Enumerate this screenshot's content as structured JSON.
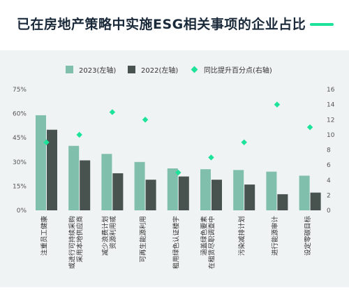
{
  "title": "已在房地产策略中实施ESG相关事项的企业占比",
  "colors": {
    "series_2023": "#7fbfab",
    "series_2022": "#48524f",
    "yoy_marker": "#1de39a",
    "accent": "#1de39a",
    "axis_text": "#555555",
    "grid": "#d4dcdc"
  },
  "legend": {
    "s2023": "2023(左轴)",
    "s2022": "2022(左轴)",
    "yoy": "同比提升百分点(右轴)"
  },
  "chart_data": {
    "type": "bar",
    "title": "已在房地产策略中实施ESG相关事项的企业占比",
    "categories": [
      [
        "注重员工健康"
      ],
      [
        "采用本地供应商",
        "或进行可持续采购"
      ],
      [
        "资源利用或",
        "减少浪费计划"
      ],
      [
        "可再生能源利用"
      ],
      [
        "租用绿色认证楼宇"
      ],
      [
        "在租赁尽职调查中",
        "涵盖绿色要素"
      ],
      [
        "污染减排计划"
      ],
      [
        "进行能源审计"
      ],
      [
        "设定零碳目标"
      ]
    ],
    "series": [
      {
        "name": "2023(左轴)",
        "axis": "left",
        "values": [
          59,
          40,
          35,
          30,
          26,
          25.5,
          25,
          24,
          21.5
        ]
      },
      {
        "name": "2022(左轴)",
        "axis": "left",
        "values": [
          50,
          31,
          23,
          19,
          21,
          19,
          16,
          10,
          11
        ]
      },
      {
        "name": "同比提升百分点(右轴)",
        "axis": "right",
        "type": "scatter",
        "values": [
          9,
          10,
          13,
          12,
          5,
          7,
          9,
          14,
          11
        ]
      }
    ],
    "yaxis_left": {
      "ylim": [
        0,
        75
      ],
      "ticks": [
        "0%",
        "15%",
        "30%",
        "45%",
        "60%",
        "75%"
      ]
    },
    "yaxis_right": {
      "ylim": [
        0,
        16
      ],
      "ticks": [
        "0",
        "2",
        "4",
        "6",
        "8",
        "10",
        "12",
        "14",
        "16"
      ]
    },
    "legend_position": "top",
    "grid": false
  }
}
